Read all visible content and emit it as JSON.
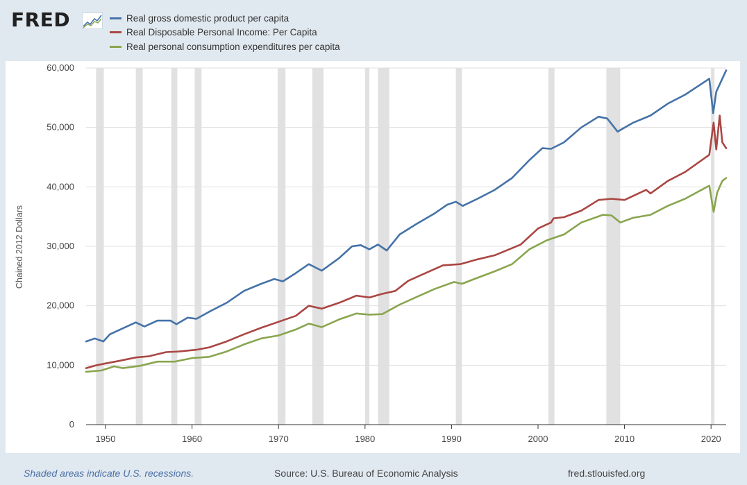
{
  "logo": {
    "text": "FRED",
    "icon": "fred-chart-icon"
  },
  "footer": {
    "note": "Shaded areas indicate U.S. recessions.",
    "source": "Source: U.S. Bureau of Economic Analysis",
    "site": "fred.stlouisfed.org"
  },
  "chart_data": {
    "type": "line",
    "title": "",
    "xlabel": "",
    "ylabel": "Chained 2012 Dollars",
    "xlim": [
      1947.75,
      2021.75
    ],
    "ylim": [
      0,
      60000
    ],
    "x_ticks": [
      1950,
      1960,
      1970,
      1980,
      1990,
      2000,
      2010,
      2020
    ],
    "y_ticks": [
      0,
      10000,
      20000,
      30000,
      40000,
      50000,
      60000
    ],
    "y_tick_labels": [
      "0",
      "10,000",
      "20,000",
      "30,000",
      "40,000",
      "50,000",
      "60,000"
    ],
    "grid": true,
    "legend_position": "top-left",
    "recessions": [
      [
        1948.9,
        1949.8
      ],
      [
        1953.5,
        1954.3
      ],
      [
        1957.6,
        1958.3
      ],
      [
        1960.3,
        1961.1
      ],
      [
        1969.9,
        1970.8
      ],
      [
        1973.9,
        1975.2
      ],
      [
        1980.0,
        1980.5
      ],
      [
        1981.5,
        1982.8
      ],
      [
        1990.5,
        1991.2
      ],
      [
        2001.2,
        2001.9
      ],
      [
        2007.9,
        2009.5
      ],
      [
        2020.0,
        2020.4
      ]
    ],
    "series": [
      {
        "name": "Real gross domestic product per capita",
        "color": "#4572a7",
        "points": [
          [
            1947.75,
            14000
          ],
          [
            1948.75,
            14500
          ],
          [
            1949.75,
            14000
          ],
          [
            1950.5,
            15200
          ],
          [
            1952,
            16200
          ],
          [
            1953.5,
            17200
          ],
          [
            1954.5,
            16500
          ],
          [
            1956,
            17500
          ],
          [
            1957.5,
            17500
          ],
          [
            1958.2,
            16900
          ],
          [
            1959.5,
            18000
          ],
          [
            1960.5,
            17800
          ],
          [
            1962,
            19000
          ],
          [
            1964,
            20500
          ],
          [
            1966,
            22500
          ],
          [
            1968,
            23700
          ],
          [
            1969.5,
            24500
          ],
          [
            1970.5,
            24100
          ],
          [
            1972,
            25500
          ],
          [
            1973.5,
            27000
          ],
          [
            1975,
            25900
          ],
          [
            1977,
            28000
          ],
          [
            1978.5,
            30000
          ],
          [
            1979.5,
            30200
          ],
          [
            1980.5,
            29500
          ],
          [
            1981.5,
            30300
          ],
          [
            1982.5,
            29300
          ],
          [
            1984,
            32000
          ],
          [
            1986,
            33800
          ],
          [
            1988,
            35500
          ],
          [
            1989.5,
            37000
          ],
          [
            1990.5,
            37500
          ],
          [
            1991.3,
            36800
          ],
          [
            1993,
            38000
          ],
          [
            1995,
            39500
          ],
          [
            1997,
            41500
          ],
          [
            1999,
            44500
          ],
          [
            2000.5,
            46500
          ],
          [
            2001.5,
            46400
          ],
          [
            2003,
            47500
          ],
          [
            2005,
            50000
          ],
          [
            2007,
            51800
          ],
          [
            2008,
            51500
          ],
          [
            2009.2,
            49300
          ],
          [
            2011,
            50800
          ],
          [
            2013,
            52000
          ],
          [
            2015,
            54000
          ],
          [
            2017,
            55500
          ],
          [
            2019.8,
            58200
          ],
          [
            2020.25,
            52400
          ],
          [
            2020.6,
            56000
          ],
          [
            2021.75,
            59600
          ]
        ]
      },
      {
        "name": "Real Disposable Personal Income: Per Capita",
        "color": "#aa4643",
        "points": [
          [
            1947.75,
            9500
          ],
          [
            1949,
            10000
          ],
          [
            1950,
            10300
          ],
          [
            1951.5,
            10700
          ],
          [
            1953.5,
            11300
          ],
          [
            1955,
            11500
          ],
          [
            1957,
            12200
          ],
          [
            1958.5,
            12300
          ],
          [
            1960.5,
            12600
          ],
          [
            1962,
            13000
          ],
          [
            1964,
            14000
          ],
          [
            1966,
            15200
          ],
          [
            1968,
            16300
          ],
          [
            1970,
            17300
          ],
          [
            1972,
            18300
          ],
          [
            1973.5,
            20000
          ],
          [
            1975,
            19500
          ],
          [
            1977,
            20500
          ],
          [
            1979,
            21700
          ],
          [
            1980.5,
            21400
          ],
          [
            1982,
            22000
          ],
          [
            1983.5,
            22500
          ],
          [
            1985,
            24200
          ],
          [
            1987,
            25500
          ],
          [
            1989,
            26800
          ],
          [
            1991,
            27000
          ],
          [
            1993,
            27800
          ],
          [
            1995,
            28500
          ],
          [
            1998,
            30300
          ],
          [
            2000,
            33000
          ],
          [
            2001.5,
            34000
          ],
          [
            2001.8,
            34700
          ],
          [
            2003,
            34900
          ],
          [
            2005,
            36000
          ],
          [
            2007,
            37800
          ],
          [
            2008.5,
            38000
          ],
          [
            2010,
            37800
          ],
          [
            2012.5,
            39500
          ],
          [
            2013,
            38900
          ],
          [
            2015,
            41000
          ],
          [
            2017,
            42500
          ],
          [
            2019.8,
            45400
          ],
          [
            2020.3,
            50800
          ],
          [
            2020.6,
            46300
          ],
          [
            2021,
            52000
          ],
          [
            2021.3,
            47500
          ],
          [
            2021.75,
            46500
          ]
        ]
      },
      {
        "name": "Real personal consumption expenditures per capita",
        "color": "#89a54e",
        "points": [
          [
            1947.75,
            8900
          ],
          [
            1949.5,
            9100
          ],
          [
            1951,
            9800
          ],
          [
            1952,
            9500
          ],
          [
            1954,
            9900
          ],
          [
            1956,
            10600
          ],
          [
            1958,
            10600
          ],
          [
            1960,
            11200
          ],
          [
            1962,
            11400
          ],
          [
            1964,
            12300
          ],
          [
            1966,
            13500
          ],
          [
            1968,
            14500
          ],
          [
            1970,
            15000
          ],
          [
            1972,
            16000
          ],
          [
            1973.5,
            17000
          ],
          [
            1975,
            16400
          ],
          [
            1977,
            17700
          ],
          [
            1979,
            18700
          ],
          [
            1980.5,
            18500
          ],
          [
            1982,
            18600
          ],
          [
            1984,
            20200
          ],
          [
            1986,
            21500
          ],
          [
            1988,
            22800
          ],
          [
            1990.3,
            24000
          ],
          [
            1991.2,
            23700
          ],
          [
            1993,
            24700
          ],
          [
            1995,
            25800
          ],
          [
            1997,
            27000
          ],
          [
            1999,
            29500
          ],
          [
            2001,
            31000
          ],
          [
            2003,
            32000
          ],
          [
            2005,
            34000
          ],
          [
            2007.5,
            35300
          ],
          [
            2008.5,
            35200
          ],
          [
            2009.5,
            34000
          ],
          [
            2011,
            34800
          ],
          [
            2013,
            35300
          ],
          [
            2015,
            36800
          ],
          [
            2017,
            38000
          ],
          [
            2019.8,
            40200
          ],
          [
            2020.3,
            35800
          ],
          [
            2020.7,
            39000
          ],
          [
            2021.3,
            41000
          ],
          [
            2021.75,
            41500
          ]
        ]
      }
    ]
  }
}
